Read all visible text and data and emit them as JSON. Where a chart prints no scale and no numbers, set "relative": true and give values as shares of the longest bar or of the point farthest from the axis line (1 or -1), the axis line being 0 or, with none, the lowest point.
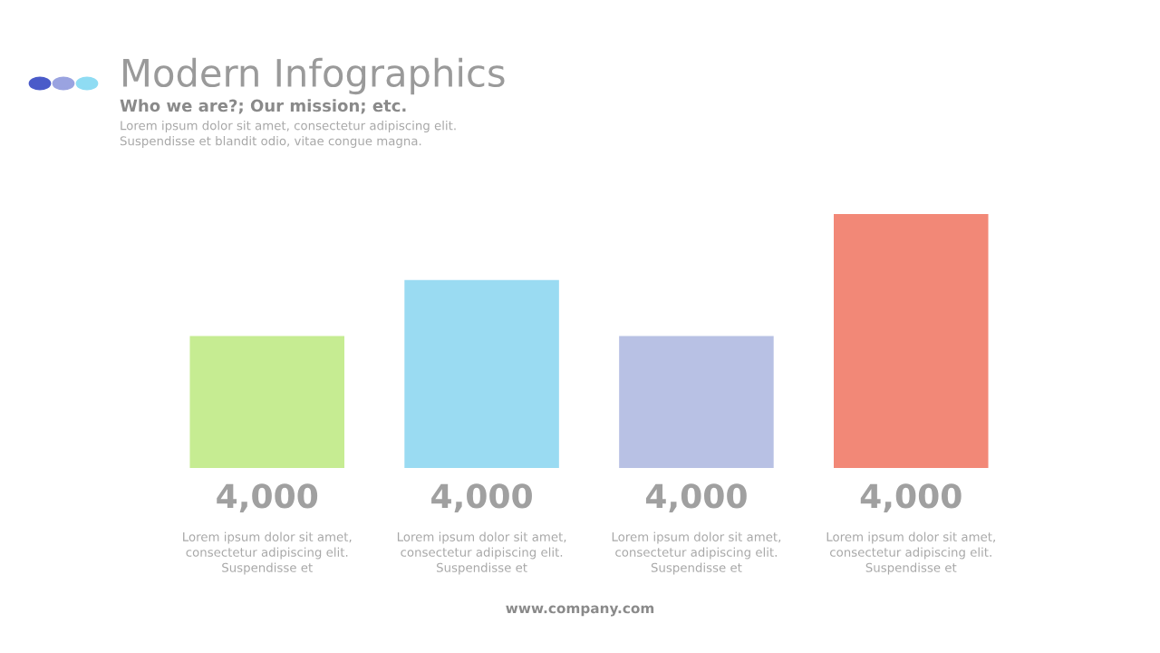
{
  "chart_data": {
    "type": "bar",
    "title": "Modern Infographics",
    "subtitle": "Who we are?; Our mission; etc.",
    "categories": [
      null,
      null,
      null,
      null
    ],
    "values": [
      0.52,
      0.74,
      0.52,
      1
    ],
    "colors": [
      "#c6ec92",
      "#9adbf2",
      "#b8c1e4",
      "#f28877"
    ],
    "relative": true,
    "annotations": [
      "Lorem ipsum dolor sit amet, consectetur adipiscing elit.\nSuspendisse et blandit odio, vitae congue magna.",
      "4,000",
      "4,000",
      "4,000",
      "4,000",
      "Lorem ipsum dolor sit amet,\nconsectetur adipiscing elit.\nSuspendisse et",
      "Lorem ipsum dolor sit amet,\nconsectetur adipiscing elit.\nSuspendisse et",
      "Lorem ipsum dolor sit amet,\nconsectetur adipiscing elit.\nSuspendisse et",
      "Lorem ipsum dolor sit amet,\nconsectetur adipiscing elit.\nSuspendisse et",
      "www.company.com"
    ]
  }
}
